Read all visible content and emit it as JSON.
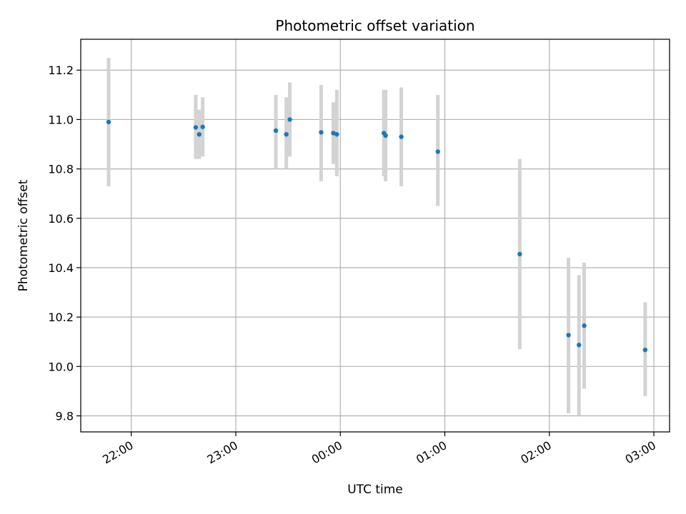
{
  "chart_data": {
    "type": "scatter",
    "title": "Photometric offset variation",
    "xlabel": "UTC time",
    "ylabel": "Photometric offset",
    "x_ticks": [
      "22:00",
      "23:00",
      "00:00",
      "01:00",
      "02:00",
      "03:00"
    ],
    "y_ticks": [
      "9.8",
      "10.0",
      "10.2",
      "10.4",
      "10.6",
      "10.8",
      "11.0",
      "11.2"
    ],
    "xlim": [
      "21:31",
      "03:09"
    ],
    "ylim": [
      9.735,
      11.325
    ],
    "grid": true,
    "colors": {
      "point": "#1f77b4",
      "errorbar": "#d3d3d3",
      "grid": "#b0b0b0"
    },
    "points": [
      {
        "x": "21:47",
        "y": 10.99,
        "err_low": 10.73,
        "err_high": 11.25
      },
      {
        "x": "22:37",
        "y": 10.968,
        "err_low": 10.84,
        "err_high": 11.1
      },
      {
        "x": "22:39",
        "y": 10.94,
        "err_low": 10.84,
        "err_high": 11.04
      },
      {
        "x": "22:41",
        "y": 10.97,
        "err_low": 10.85,
        "err_high": 11.09
      },
      {
        "x": "23:23",
        "y": 10.955,
        "err_low": 10.8,
        "err_high": 11.1
      },
      {
        "x": "23:29",
        "y": 10.94,
        "err_low": 10.8,
        "err_high": 11.09
      },
      {
        "x": "23:31",
        "y": 11.0,
        "err_low": 10.85,
        "err_high": 11.15
      },
      {
        "x": "23:49",
        "y": 10.948,
        "err_low": 10.75,
        "err_high": 11.14
      },
      {
        "x": "23:56",
        "y": 10.945,
        "err_low": 10.82,
        "err_high": 11.07
      },
      {
        "x": "23:58",
        "y": 10.94,
        "err_low": 10.77,
        "err_high": 11.12
      },
      {
        "x": "00:25",
        "y": 10.945,
        "err_low": 10.77,
        "err_high": 11.12
      },
      {
        "x": "00:26",
        "y": 10.935,
        "err_low": 10.75,
        "err_high": 11.12
      },
      {
        "x": "00:35",
        "y": 10.93,
        "err_low": 10.73,
        "err_high": 11.13
      },
      {
        "x": "00:56",
        "y": 10.87,
        "err_low": 10.65,
        "err_high": 11.1
      },
      {
        "x": "01:43",
        "y": 10.455,
        "err_low": 10.07,
        "err_high": 10.84
      },
      {
        "x": "02:11",
        "y": 10.127,
        "err_low": 9.81,
        "err_high": 10.44
      },
      {
        "x": "02:17",
        "y": 10.087,
        "err_low": 9.8,
        "err_high": 10.37
      },
      {
        "x": "02:20",
        "y": 10.165,
        "err_low": 9.91,
        "err_high": 10.42
      },
      {
        "x": "02:55",
        "y": 10.067,
        "err_low": 9.88,
        "err_high": 10.26
      }
    ]
  }
}
